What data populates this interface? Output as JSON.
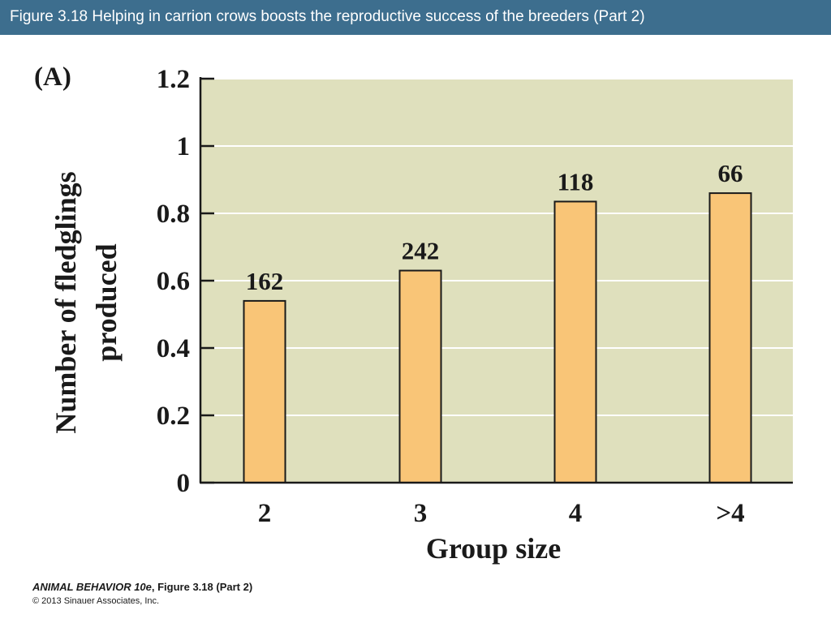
{
  "slide": {
    "title": "Figure 3.18  Helping in carrion crows boosts the reproductive success of the breeders (Part 2)"
  },
  "footer": {
    "book": "ANIMAL BEHAVIOR 10e",
    "figure": ", Figure 3.18 (Part 2)",
    "copyright": "© 2013 Sinauer Associates, Inc."
  },
  "colors": {
    "header": "#3d6e8e",
    "plot_background": "#dfe0bd",
    "bar_fill": "#f9c577",
    "bar_stroke": "#1a1a1a",
    "gridline": "#ffffff"
  },
  "chart_data": {
    "type": "bar",
    "panel_label": "(A)",
    "categories": [
      "2",
      "3",
      "4",
      ">4"
    ],
    "values": [
      0.54,
      0.63,
      0.835,
      0.86
    ],
    "data_labels": [
      "162",
      "242",
      "118",
      "66"
    ],
    "xlabel": "Group size",
    "ylabel": [
      "Number of fledglings",
      "produced"
    ],
    "ylim": [
      0,
      1.2
    ],
    "yticks": [
      0,
      0.2,
      0.4,
      0.6,
      0.8,
      1,
      1.2
    ],
    "ytick_labels": [
      "0",
      "0.2",
      "0.4",
      "0.6",
      "0.8",
      "1",
      "1.2"
    ],
    "grid": true,
    "legend": "none"
  }
}
